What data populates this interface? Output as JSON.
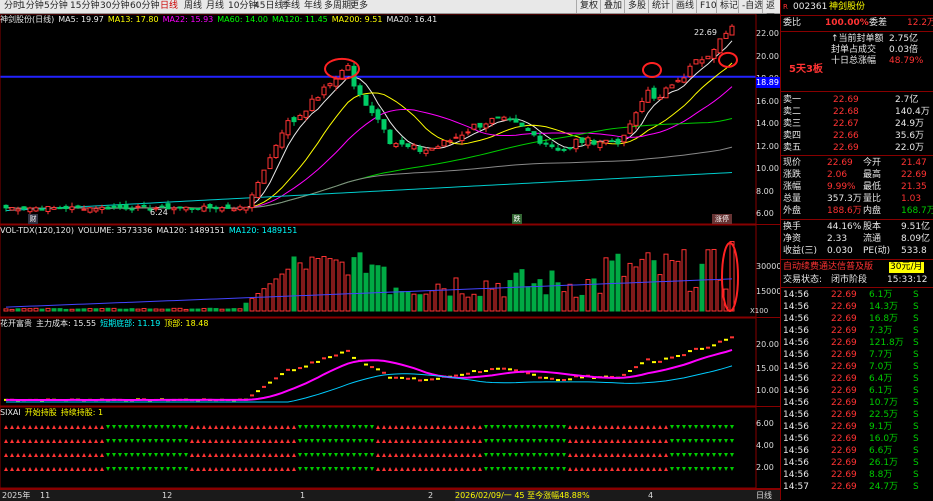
{
  "toolbar": {
    "items": [
      "分时",
      "1分钟",
      "5分钟",
      "15分钟",
      "30分钟",
      "60分钟",
      "日线",
      "周线",
      "月线",
      "10分钟",
      "45日线",
      "季线",
      "年线",
      "多周期",
      "更多"
    ],
    "active_index": 6,
    "right_items": [
      "复权",
      "叠加",
      "多股",
      "统计",
      "画线",
      "F10",
      "标记",
      "-自选",
      "返回"
    ]
  },
  "main": {
    "legend": [
      {
        "text": "神剑股份(日线)",
        "color": "#e8e8e8"
      },
      {
        "text": "MA5: 19.97",
        "color": "#e8e8e8"
      },
      {
        "text": "MA13: 17.80",
        "color": "#ffff00"
      },
      {
        "text": "MA22: 15.93",
        "color": "#ff00ff"
      },
      {
        "text": "MA60: 14.00",
        "color": "#00ff00"
      },
      {
        "text": "MA120: 11.45",
        "color": "#00ff00"
      },
      {
        "text": "MA200: 9.51",
        "color": "#ffff00"
      },
      {
        "text": "MA20: 16.41",
        "color": "#e8e8e8"
      }
    ],
    "price_ticks": [
      "22.00",
      "20.00",
      "18.00",
      "16.00",
      "14.00",
      "12.00",
      "10.00",
      "8.00",
      "6.00"
    ],
    "line_price_label": "18.89",
    "high_label": "22.69",
    "low_label": "6.24",
    "marker_left": "财",
    "marker_mid": "跌",
    "marker_right": "涨停"
  },
  "volume": {
    "legend": [
      {
        "text": "VOL-TDX(120,120)",
        "color": "#e8e8e8"
      },
      {
        "text": "VOLUME: 3573336",
        "color": "#e8e8e8"
      },
      {
        "text": "MA120: 1489151",
        "color": "#e8e8e8"
      },
      {
        "text": "MA120: 1489151",
        "color": "#00ffff"
      }
    ],
    "ticks": [
      "30000",
      "15000"
    ],
    "unit": "X100"
  },
  "ind1": {
    "legend": [
      {
        "text": "花开富贵",
        "color": "#e8e8e8"
      },
      {
        "text": "主力成本: 15.55",
        "color": "#e8e8e8"
      },
      {
        "text": "短期底部: 11.19",
        "color": "#00ffff"
      },
      {
        "text": "顶部: 18.48",
        "color": "#ffff00"
      }
    ],
    "ticks": [
      "20.00",
      "15.00",
      "10.00"
    ]
  },
  "ind2": {
    "legend": [
      {
        "text": "SIXAI",
        "color": "#e8e8e8"
      },
      {
        "text": "开始持股",
        "color": "#ffff00"
      },
      {
        "text": "持续持股: 1",
        "color": "#ffff00"
      }
    ],
    "ticks": [
      "6.00",
      "4.00",
      "2.00"
    ]
  },
  "bottom": {
    "year": "2025年",
    "months": [
      "11",
      "12",
      "1",
      "2",
      "3",
      "4"
    ],
    "info": "2026/02/09/一 45 至今涨幅48.88%",
    "right": "日线"
  },
  "panel": {
    "code": "002361",
    "name": "神剑股份",
    "webi_label": "委比",
    "webi_value": "100.00%",
    "weicha_label": "委差",
    "weicha_value": "12.2万",
    "tag": "5天3板",
    "info_lines": [
      {
        "label": "↑当前封单额",
        "value": "2.75亿"
      },
      {
        "label": "封单占成交",
        "value": "0.03倍"
      },
      {
        "label": "十日总涨幅",
        "value": "48.79%"
      }
    ],
    "sell": [
      {
        "label": "卖五",
        "price": "22.69",
        "vol": "22.0万"
      },
      {
        "label": "卖四",
        "price": "22.66",
        "vol": "35.6万"
      },
      {
        "label": "卖三",
        "price": "22.67",
        "vol": "24.9万"
      },
      {
        "label": "卖二",
        "price": "22.68",
        "vol": "140.4万"
      },
      {
        "label": "卖一",
        "price": "22.69",
        "vol": "2.7亿"
      }
    ],
    "quote": [
      {
        "l1": "现价",
        "v1": "22.69",
        "c1": "red",
        "l2": "今开",
        "v2": "21.47",
        "c2": "red"
      },
      {
        "l1": "涨跌",
        "v1": "2.06",
        "c1": "red",
        "l2": "最高",
        "v2": "22.69",
        "c2": "red"
      },
      {
        "l1": "涨幅",
        "v1": "9.99%",
        "c1": "red",
        "l2": "最低",
        "v2": "21.35",
        "c2": "red"
      },
      {
        "l1": "总量",
        "v1": "357.3万",
        "c1": "wht",
        "l2": "量比",
        "v2": "1.03",
        "c2": "red"
      },
      {
        "l1": "外盘",
        "v1": "188.6万",
        "c1": "red",
        "l2": "内盘",
        "v2": "168.7万",
        "c2": "grn"
      }
    ],
    "quote2": [
      {
        "l1": "换手",
        "v1": "44.16%",
        "l2": "股本",
        "v2": "9.51亿"
      },
      {
        "l1": "净资",
        "v1": "2.33",
        "l2": "流通",
        "v2": "8.09亿"
      },
      {
        "l1": "收益(三)",
        "v1": "0.030",
        "l2": "PE(动)",
        "v2": "533.8"
      }
    ],
    "banner": "自动续费通达信普及版",
    "banner_price": "30元/月",
    "status_label": "交易状态:",
    "status_value": "闭市阶段",
    "status_time": "15:33:12",
    "ticks": [
      {
        "t": "14:56",
        "p": "22.69",
        "v": "6.1万",
        "s": "S"
      },
      {
        "t": "14:56",
        "p": "22.69",
        "v": "14.3万",
        "s": "S"
      },
      {
        "t": "14:56",
        "p": "22.69",
        "v": "16.8万",
        "s": "S"
      },
      {
        "t": "14:56",
        "p": "22.69",
        "v": "7.3万",
        "s": "S"
      },
      {
        "t": "14:56",
        "p": "22.69",
        "v": "121.8万",
        "s": "S"
      },
      {
        "t": "14:56",
        "p": "22.69",
        "v": "7.7万",
        "s": "S"
      },
      {
        "t": "14:56",
        "p": "22.69",
        "v": "7.0万",
        "s": "S"
      },
      {
        "t": "14:56",
        "p": "22.69",
        "v": "6.4万",
        "s": "S"
      },
      {
        "t": "14:56",
        "p": "22.69",
        "v": "6.1万",
        "s": "S"
      },
      {
        "t": "14:56",
        "p": "22.69",
        "v": "10.7万",
        "s": "S"
      },
      {
        "t": "14:56",
        "p": "22.69",
        "v": "22.5万",
        "s": "S"
      },
      {
        "t": "14:56",
        "p": "22.69",
        "v": "9.1万",
        "s": "S"
      },
      {
        "t": "14:56",
        "p": "22.69",
        "v": "16.0万",
        "s": "S"
      },
      {
        "t": "14:56",
        "p": "22.69",
        "v": "6.6万",
        "s": "S"
      },
      {
        "t": "14:56",
        "p": "22.69",
        "v": "26.1万",
        "s": "S"
      },
      {
        "t": "14:56",
        "p": "22.69",
        "v": "8.8万",
        "s": "S"
      },
      {
        "t": "14:57",
        "p": "22.69",
        "v": "24.7万",
        "s": "S"
      }
    ]
  }
}
